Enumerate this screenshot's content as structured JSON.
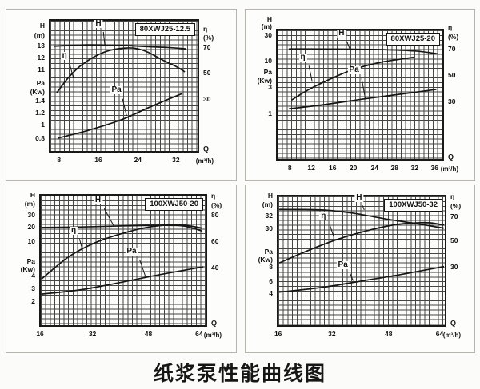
{
  "caption": "纸浆泵性能曲线图",
  "chart_data": [
    {
      "type": "line",
      "model": "80XWJ25-12.5",
      "x_axis": {
        "q_label": "Q",
        "unit": "(m³/h)",
        "ticks": [
          {
            "t": "8",
            "f": 0.068
          },
          {
            "t": "16",
            "f": 0.33
          },
          {
            "t": "24",
            "f": 0.592
          },
          {
            "t": "32",
            "f": 0.845
          }
        ]
      },
      "left_axis": [
        {
          "t": "H",
          "f": 0.05
        },
        {
          "t": "(m)",
          "f": 0.12
        },
        {
          "t": "13",
          "f": 0.2
        },
        {
          "t": "12",
          "f": 0.29
        },
        {
          "t": "11",
          "f": 0.38
        },
        {
          "t": "Pa",
          "f": 0.48
        },
        {
          "t": "(Kw)",
          "f": 0.545
        },
        {
          "t": "1.4",
          "f": 0.61
        },
        {
          "t": "1.2",
          "f": 0.7
        },
        {
          "t": "1",
          "f": 0.79
        },
        {
          "t": "0.8",
          "f": 0.89
        }
      ],
      "right_axis": [
        {
          "t": "η",
          "f": 0.07
        },
        {
          "t": "(%)",
          "f": 0.135
        },
        {
          "t": "70",
          "f": 0.21
        },
        {
          "t": "50",
          "f": 0.4
        },
        {
          "t": "30",
          "f": 0.6
        }
      ],
      "curves": [
        {
          "name": "H",
          "label_pos": [
            0.33,
            0.035
          ],
          "leader": [
            [
              0.36,
              0.085
            ],
            [
              0.37,
              0.19
            ]
          ],
          "pts": [
            [
              0.03,
              0.195
            ],
            [
              0.25,
              0.185
            ],
            [
              0.45,
              0.188
            ],
            [
              0.65,
              0.198
            ],
            [
              0.8,
              0.205
            ],
            [
              0.92,
              0.215
            ]
          ],
          "data": {
            "unit": "m",
            "x": [
              8,
              16,
              24,
              32,
              33
            ],
            "y": [
              13.1,
              13.1,
              13.0,
              12.95,
              12.9
            ]
          }
        },
        {
          "name": "η",
          "label_pos": [
            0.105,
            0.275
          ],
          "leader": [
            [
              0.13,
              0.33
            ],
            [
              0.157,
              0.44
            ]
          ],
          "pts": [
            [
              0.045,
              0.55
            ],
            [
              0.12,
              0.44
            ],
            [
              0.2,
              0.35
            ],
            [
              0.3,
              0.275
            ],
            [
              0.4,
              0.228
            ],
            [
              0.5,
              0.21
            ],
            [
              0.58,
              0.212
            ],
            [
              0.66,
              0.24
            ],
            [
              0.76,
              0.3
            ],
            [
              0.86,
              0.355
            ],
            [
              0.91,
              0.39
            ]
          ],
          "data": {
            "unit": "%",
            "x": [
              8,
              12,
              16,
              20,
              24,
              28,
              32,
              33
            ],
            "y": [
              36,
              48,
              58,
              66,
              69,
              63,
              53,
              51
            ]
          }
        },
        {
          "name": "Pa",
          "label_pos": [
            0.45,
            0.535
          ],
          "leader": [
            [
              0.49,
              0.6
            ],
            [
              0.518,
              0.73
            ]
          ],
          "pts": [
            [
              0.054,
              0.9
            ],
            [
              0.25,
              0.844
            ],
            [
              0.482,
              0.76
            ],
            [
              0.661,
              0.67
            ],
            [
              0.786,
              0.61
            ],
            [
              0.893,
              0.56
            ]
          ],
          "data": {
            "unit": "kW",
            "x": [
              8,
              16,
              24,
              30,
              33
            ],
            "y": [
              0.8,
              1.0,
              1.25,
              1.42,
              1.5
            ]
          }
        }
      ]
    },
    {
      "type": "line",
      "model": "80XWJ25-20",
      "x_axis": {
        "q_label": "Q",
        "unit": "(m³/h)",
        "ticks": [
          {
            "t": "8",
            "f": 0.082
          },
          {
            "t": "12",
            "f": 0.21
          },
          {
            "t": "16",
            "f": 0.337
          },
          {
            "t": "20",
            "f": 0.46
          },
          {
            "t": "24",
            "f": 0.587
          },
          {
            "t": "28",
            "f": 0.706
          },
          {
            "t": "32",
            "f": 0.825
          },
          {
            "t": "36",
            "f": 0.944
          }
        ]
      },
      "left_axis": [
        {
          "t": "H",
          "f": -0.075
        },
        {
          "t": "(m)",
          "f": -0.02
        },
        {
          "t": "30",
          "f": 0.048
        },
        {
          "t": "10",
          "f": 0.244
        },
        {
          "t": "Pa",
          "f": 0.33
        },
        {
          "t": "(Kw)",
          "f": 0.395
        },
        {
          "t": "3",
          "f": 0.444
        },
        {
          "t": "1",
          "f": 0.645
        }
      ],
      "right_axis": [
        {
          "t": "η",
          "f": -0.01
        },
        {
          "t": "(%)",
          "f": 0.06
        },
        {
          "t": "70",
          "f": 0.15
        },
        {
          "t": "50",
          "f": 0.35
        },
        {
          "t": "30",
          "f": 0.55
        }
      ],
      "curves": [
        {
          "name": "H",
          "label_pos": [
            0.39,
            0.035
          ],
          "leader": [
            [
              0.42,
              0.085
            ],
            [
              0.437,
              0.14
            ]
          ],
          "pts": [
            [
              0.071,
              0.144
            ],
            [
              0.43,
              0.146
            ],
            [
              0.7,
              0.152
            ],
            [
              0.85,
              0.162
            ],
            [
              0.968,
              0.182
            ]
          ],
          "data": {
            "unit": "m",
            "x": [
              8,
              16,
              24,
              32,
              37
            ],
            "y": [
              20,
              20,
              20,
              19.5,
              18.5
            ]
          }
        },
        {
          "name": "η",
          "label_pos": [
            0.16,
            0.22
          ],
          "leader": [
            [
              0.19,
              0.275
            ],
            [
              0.21,
              0.4
            ]
          ],
          "pts": [
            [
              0.087,
              0.54
            ],
            [
              0.19,
              0.46
            ],
            [
              0.317,
              0.38
            ],
            [
              0.46,
              0.304
            ],
            [
              0.619,
              0.25
            ],
            [
              0.746,
              0.224
            ],
            [
              0.822,
              0.21
            ]
          ],
          "data": {
            "unit": "%",
            "x": [
              8,
              12,
              16,
              20,
              24,
              28,
              32
            ],
            "y": [
              31,
              41,
              48,
              54,
              58,
              61,
              64
            ]
          }
        },
        {
          "name": "Pa",
          "label_pos": [
            0.465,
            0.315
          ],
          "leader": [
            [
              0.51,
              0.375
            ],
            [
              0.532,
              0.53
            ]
          ],
          "pts": [
            [
              0.071,
              0.61
            ],
            [
              0.27,
              0.58
            ],
            [
              0.508,
              0.536
            ],
            [
              0.746,
              0.496
            ],
            [
              0.96,
              0.46
            ]
          ],
          "data": {
            "unit": "kW",
            "x": [
              8,
              16,
              24,
              32,
              37
            ],
            "y": [
              1.2,
              1.5,
              1.9,
              2.4,
              2.8
            ]
          }
        }
      ]
    },
    {
      "type": "line",
      "model": "100XWJ50-20",
      "x_axis": {
        "q_label": "Q",
        "unit": "(m³/h)",
        "ticks": [
          {
            "t": "16",
            "f": 0.005
          },
          {
            "t": "32",
            "f": 0.317
          },
          {
            "t": "48",
            "f": 0.65
          },
          {
            "t": "64",
            "f": 0.952
          }
        ]
      },
      "left_axis": [
        {
          "t": "H",
          "f": 0.005
        },
        {
          "t": "(m)",
          "f": 0.075
        },
        {
          "t": "30",
          "f": 0.154
        },
        {
          "t": "20",
          "f": 0.246
        },
        {
          "t": "10",
          "f": 0.354
        },
        {
          "t": "Pa",
          "f": 0.505
        },
        {
          "t": "(Kw)",
          "f": 0.565
        },
        {
          "t": "4",
          "f": 0.612
        },
        {
          "t": "3",
          "f": 0.713
        },
        {
          "t": "2",
          "f": 0.806
        }
      ],
      "right_axis": [
        {
          "t": "η",
          "f": 0.015
        },
        {
          "t": "(%)",
          "f": 0.085
        },
        {
          "t": "80",
          "f": 0.154
        },
        {
          "t": "60",
          "f": 0.354
        },
        {
          "t": "40",
          "f": 0.552
        }
      ],
      "curves": [
        {
          "name": "H",
          "label_pos": [
            0.35,
            0.05
          ],
          "leader": [
            [
              0.385,
              0.1
            ],
            [
              0.444,
              0.235
            ]
          ],
          "pts": [
            [
              0.008,
              0.246
            ],
            [
              0.246,
              0.242
            ],
            [
              0.484,
              0.234
            ],
            [
              0.659,
              0.23
            ],
            [
              0.802,
              0.23
            ],
            [
              0.881,
              0.238
            ],
            [
              0.976,
              0.272
            ]
          ],
          "data": {
            "unit": "m",
            "x": [
              16,
              32,
              48,
              56,
              64
            ],
            "y": [
              20,
              20,
              20.4,
              20.5,
              19.3
            ]
          }
        },
        {
          "name": "η",
          "label_pos": [
            0.205,
            0.275
          ],
          "leader": [
            [
              0.235,
              0.335
            ],
            [
              0.254,
              0.425
            ]
          ],
          "pts": [
            [
              0.008,
              0.64
            ],
            [
              0.167,
              0.474
            ],
            [
              0.325,
              0.366
            ],
            [
              0.5,
              0.29
            ],
            [
              0.659,
              0.242
            ],
            [
              0.786,
              0.226
            ],
            [
              0.881,
              0.23
            ],
            [
              0.976,
              0.25
            ]
          ],
          "data": {
            "unit": "%",
            "x": [
              16,
              24,
              32,
              40,
              48,
              56,
              64
            ],
            "y": [
              32,
              45,
              54,
              62,
              69,
              72,
              70
            ]
          }
        },
        {
          "name": "Pa",
          "label_pos": [
            0.55,
            0.435
          ],
          "leader": [
            [
              0.6,
              0.495
            ],
            [
              0.638,
              0.635
            ]
          ],
          "pts": [
            [
              0.005,
              0.76
            ],
            [
              0.246,
              0.726
            ],
            [
              0.484,
              0.67
            ],
            [
              0.722,
              0.61
            ],
            [
              0.984,
              0.55
            ]
          ],
          "data": {
            "unit": "kW",
            "x": [
              16,
              32,
              48,
              64
            ],
            "y": [
              2.5,
              3.0,
              3.7,
              4.5
            ]
          }
        }
      ]
    },
    {
      "type": "line",
      "model": "100XWJ50-32",
      "x_axis": {
        "q_label": "Q",
        "unit": "(m³/h)",
        "ticks": [
          {
            "t": "16",
            "f": 0.008
          },
          {
            "t": "32",
            "f": 0.325
          },
          {
            "t": "48",
            "f": 0.659
          },
          {
            "t": "64",
            "f": 0.96
          }
        ]
      },
      "left_axis": [
        {
          "t": "H",
          "f": 0.005
        },
        {
          "t": "(m)",
          "f": 0.075
        },
        {
          "t": "32",
          "f": 0.158
        },
        {
          "t": "30",
          "f": 0.253
        },
        {
          "t": "Pa",
          "f": 0.43
        },
        {
          "t": "(Kw)",
          "f": 0.49
        },
        {
          "t": "8",
          "f": 0.545
        },
        {
          "t": "6",
          "f": 0.657
        },
        {
          "t": "4",
          "f": 0.743
        }
      ],
      "right_axis": [
        {
          "t": "η",
          "f": 0.015
        },
        {
          "t": "(%)",
          "f": 0.085
        },
        {
          "t": "70",
          "f": 0.162
        },
        {
          "t": "50",
          "f": 0.343
        },
        {
          "t": "30",
          "f": 0.545
        }
      ],
      "curves": [
        {
          "name": "H",
          "label_pos": [
            0.485,
            0.025
          ],
          "leader": [
            [
              0.505,
              0.07
            ],
            [
              0.516,
              0.105
            ]
          ],
          "pts": [
            [
              0.008,
              0.101
            ],
            [
              0.262,
              0.105
            ],
            [
              0.452,
              0.131
            ],
            [
              0.659,
              0.178
            ],
            [
              0.833,
              0.212
            ],
            [
              0.992,
              0.246
            ]
          ],
          "data": {
            "unit": "m",
            "x": [
              16,
              32,
              48,
              64
            ],
            "y": [
              33,
              32.7,
              31.6,
              30
            ]
          }
        },
        {
          "name": "η",
          "label_pos": [
            0.275,
            0.165
          ],
          "leader": [
            [
              0.31,
              0.225
            ],
            [
              0.333,
              0.315
            ]
          ],
          "pts": [
            [
              0.008,
              0.515
            ],
            [
              0.183,
              0.418
            ],
            [
              0.357,
              0.333
            ],
            [
              0.532,
              0.267
            ],
            [
              0.69,
              0.222
            ],
            [
              0.817,
              0.206
            ],
            [
              0.913,
              0.205
            ],
            [
              0.992,
              0.222
            ]
          ],
          "data": {
            "unit": "%",
            "x": [
              16,
              24,
              32,
              40,
              48,
              56,
              64
            ],
            "y": [
              33,
              41,
              48,
              56,
              62,
              66,
              65
            ]
          }
        },
        {
          "name": "Pa",
          "label_pos": [
            0.39,
            0.535
          ],
          "leader": [
            [
              0.43,
              0.595
            ],
            [
              0.449,
              0.655
            ]
          ],
          "pts": [
            [
              0.008,
              0.743
            ],
            [
              0.262,
              0.707
            ],
            [
              0.5,
              0.657
            ],
            [
              0.738,
              0.606
            ],
            [
              0.992,
              0.545
            ]
          ],
          "data": {
            "unit": "kW",
            "x": [
              16,
              32,
              48,
              64
            ],
            "y": [
              4.2,
              5.3,
              6.5,
              8.0
            ]
          }
        }
      ]
    }
  ]
}
